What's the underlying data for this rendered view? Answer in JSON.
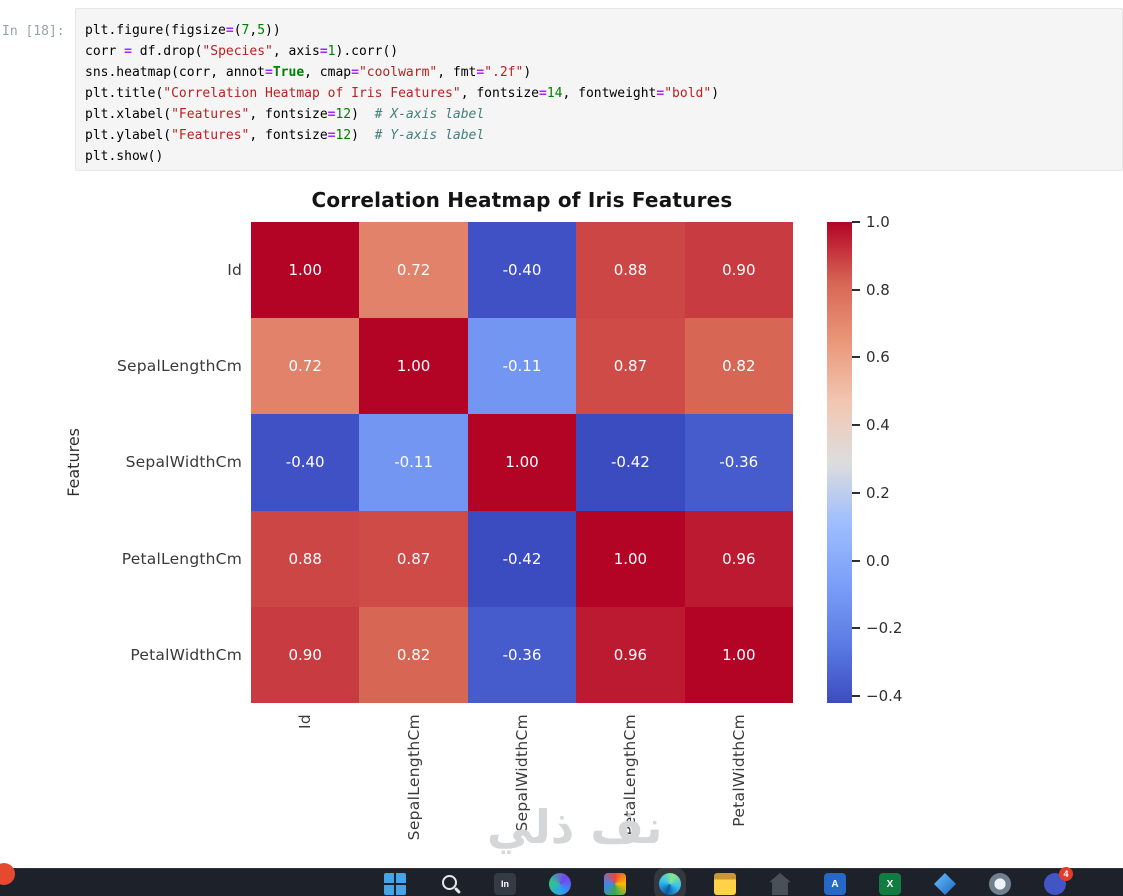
{
  "notebook": {
    "prompt": "In [18]:",
    "token_colors": {
      "v": "#000000",
      "o": "#AA22FF",
      "n": "#008000",
      "s": "#BA2121",
      "k": "#008000",
      "c": "#408080"
    },
    "code_lines": [
      [
        [
          "plt.figure(figsize",
          "v"
        ],
        [
          "=",
          "o"
        ],
        [
          "(",
          "v"
        ],
        [
          "7",
          "n"
        ],
        [
          ",",
          "v"
        ],
        [
          "5",
          "n"
        ],
        [
          "))",
          "v"
        ]
      ],
      [
        [
          "corr ",
          "v"
        ],
        [
          "=",
          "o"
        ],
        [
          " df.drop(",
          "v"
        ],
        [
          "\"Species\"",
          "s"
        ],
        [
          ", axis",
          "v"
        ],
        [
          "=",
          "o"
        ],
        [
          "1",
          "n"
        ],
        [
          ").corr()",
          "v"
        ]
      ],
      [
        [
          "sns.heatmap(corr, annot",
          "v"
        ],
        [
          "=",
          "o"
        ],
        [
          "True",
          "k"
        ],
        [
          ", cmap",
          "v"
        ],
        [
          "=",
          "o"
        ],
        [
          "\"coolwarm\"",
          "s"
        ],
        [
          ", fmt",
          "v"
        ],
        [
          "=",
          "o"
        ],
        [
          "\".2f\"",
          "s"
        ],
        [
          ")",
          "v"
        ]
      ],
      [
        [
          "plt.title(",
          "v"
        ],
        [
          "\"Correlation Heatmap of Iris Features\"",
          "s"
        ],
        [
          ", fontsize",
          "v"
        ],
        [
          "=",
          "o"
        ],
        [
          "14",
          "n"
        ],
        [
          ", fontweight",
          "v"
        ],
        [
          "=",
          "o"
        ],
        [
          "\"bold\"",
          "s"
        ],
        [
          ")",
          "v"
        ]
      ],
      [
        [
          "plt.xlabel(",
          "v"
        ],
        [
          "\"Features\"",
          "s"
        ],
        [
          ", fontsize",
          "v"
        ],
        [
          "=",
          "o"
        ],
        [
          "12",
          "n"
        ],
        [
          ")  ",
          "v"
        ],
        [
          "# X-axis label",
          "c"
        ]
      ],
      [
        [
          "plt.ylabel(",
          "v"
        ],
        [
          "\"Features\"",
          "s"
        ],
        [
          ", fontsize",
          "v"
        ],
        [
          "=",
          "o"
        ],
        [
          "12",
          "n"
        ],
        [
          ")  ",
          "v"
        ],
        [
          "# Y-axis label",
          "c"
        ]
      ],
      [
        [
          "plt.show()",
          "v"
        ]
      ]
    ]
  },
  "chart_data": {
    "type": "heatmap",
    "title": "Correlation Heatmap of Iris Features",
    "ylabel": "Features",
    "labels": [
      "Id",
      "SepalLengthCm",
      "SepalWidthCm",
      "PetalLengthCm",
      "PetalWidthCm"
    ],
    "matrix": [
      [
        1.0,
        0.72,
        -0.4,
        0.88,
        0.9
      ],
      [
        0.72,
        1.0,
        -0.11,
        0.87,
        0.82
      ],
      [
        -0.4,
        -0.11,
        1.0,
        -0.42,
        -0.36
      ],
      [
        0.88,
        0.87,
        -0.42,
        1.0,
        0.96
      ],
      [
        0.9,
        0.82,
        -0.36,
        0.96,
        1.0
      ]
    ],
    "value_format": ".2f",
    "cmap": "coolwarm",
    "vmin": -0.42,
    "vmax": 1.0,
    "colorbar_ticks": [
      1.0,
      0.8,
      0.6,
      0.4,
      0.2,
      0.0,
      -0.2,
      -0.4
    ],
    "annotation_text_color": "#ffffff",
    "cmap_endpoints": {
      "low": "#3b4cc0",
      "mid": "#dddddd",
      "high": "#b40426"
    },
    "legend_position": "right",
    "grid": false
  },
  "watermark": "نف ذلي",
  "taskbar": {
    "icons": [
      {
        "name": "start",
        "glyph": ""
      },
      {
        "name": "search",
        "glyph": ""
      },
      {
        "name": "code-app",
        "glyph": "In"
      },
      {
        "name": "chat-app",
        "glyph": ""
      },
      {
        "name": "photos-app",
        "glyph": ""
      },
      {
        "name": "edge-browser",
        "glyph": "",
        "active": true
      },
      {
        "name": "file-explorer",
        "glyph": ""
      },
      {
        "name": "home-app",
        "glyph": ""
      },
      {
        "name": "word-app",
        "glyph": "A"
      },
      {
        "name": "excel-app",
        "glyph": "X"
      },
      {
        "name": "gem-app",
        "glyph": ""
      },
      {
        "name": "browser-app",
        "glyph": ""
      },
      {
        "name": "teams-app",
        "glyph": "",
        "badge": "4"
      }
    ]
  }
}
